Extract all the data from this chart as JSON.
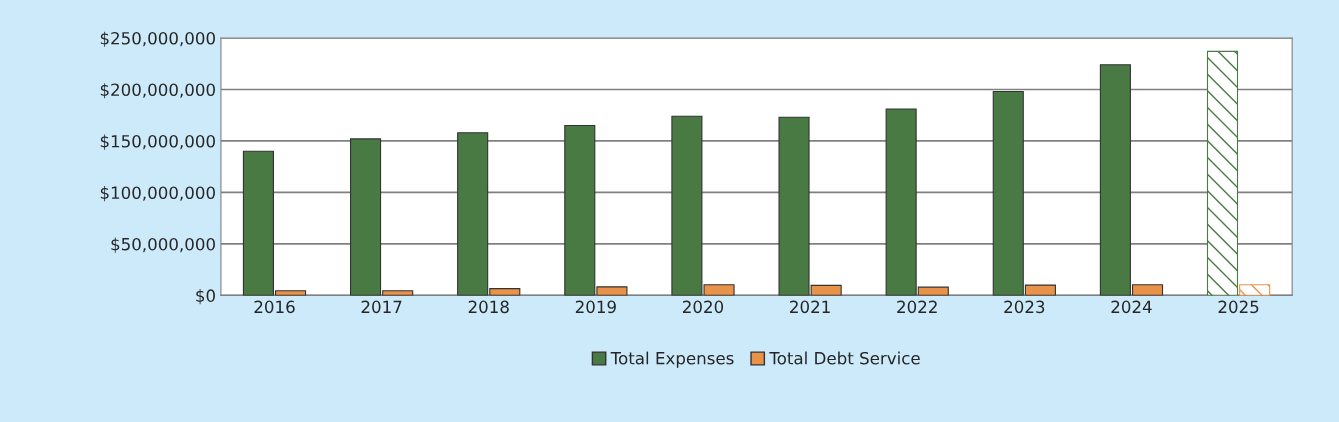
{
  "chart_data": {
    "type": "bar",
    "categories": [
      "2016",
      "2017",
      "2018",
      "2019",
      "2020",
      "2021",
      "2022",
      "2023",
      "2024",
      "2025"
    ],
    "series": [
      {
        "name": "Total Expenses",
        "color": "#4a7a44",
        "values": [
          140000000,
          152000000,
          158000000,
          165000000,
          174000000,
          173000000,
          181000000,
          198000000,
          224000000,
          237000000
        ]
      },
      {
        "name": "Total Debt Service",
        "color": "#e8924a",
        "values": [
          4500000,
          4500000,
          6600000,
          8300000,
          10400000,
          9700000,
          8000000,
          10000000,
          10400000,
          10400000
        ]
      }
    ],
    "ylim": [
      0,
      250000000
    ],
    "yticks": [
      {
        "value": 0,
        "label": "$0"
      },
      {
        "value": 50000000,
        "label": "$50,000,000"
      },
      {
        "value": 100000000,
        "label": "$100,000,000"
      },
      {
        "value": 150000000,
        "label": "$150,000,000"
      },
      {
        "value": 200000000,
        "label": "$200,000,000"
      },
      {
        "value": 250000000,
        "label": "$250,000,000"
      }
    ],
    "grid": "y",
    "legend": "bottom"
  }
}
